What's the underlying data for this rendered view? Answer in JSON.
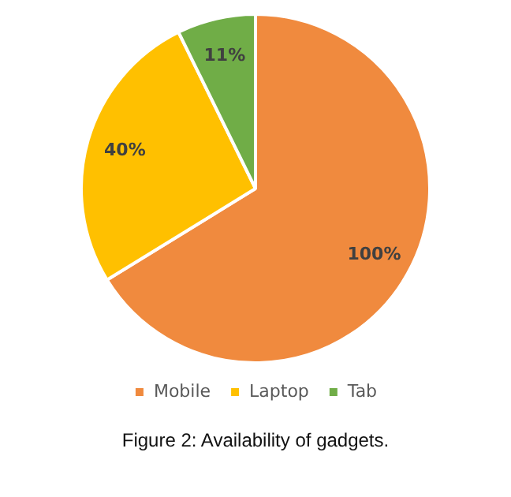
{
  "chart_data": {
    "type": "pie",
    "categories": [
      "Mobile",
      "Laptop",
      "Tab"
    ],
    "values": [
      100,
      40,
      11
    ],
    "colors": [
      "#f08a3e",
      "#ffc000",
      "#70ad47"
    ],
    "value_labels": [
      "100%",
      "40%",
      "11%"
    ],
    "legend": "bottom",
    "annotations": [
      "Figure 2: Availability of gadgets."
    ]
  }
}
